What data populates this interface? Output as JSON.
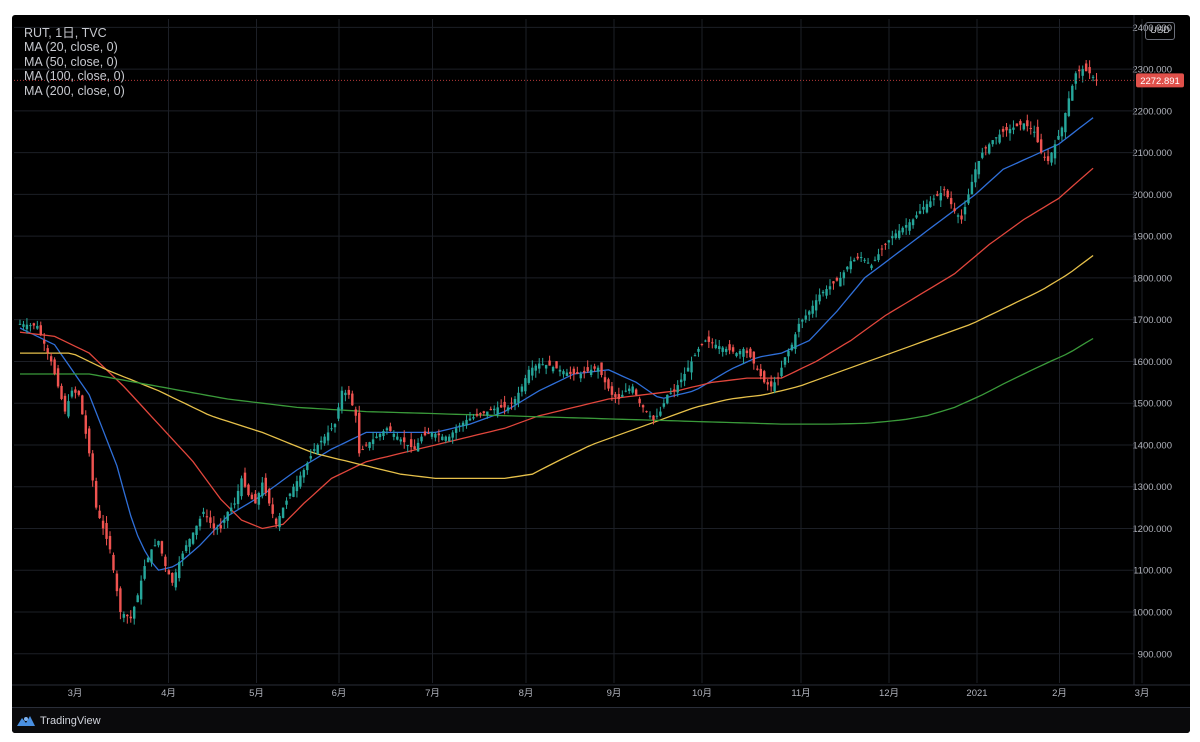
{
  "legend": {
    "symbol": "RUT, 1日, TVC",
    "ma20": "MA (20, close, 0)",
    "ma50": "MA (50, close, 0)",
    "ma100": "MA (100, close, 0)",
    "ma200": "MA (200, close, 0)"
  },
  "currency": "USD",
  "footer": {
    "brand": "TradingView"
  },
  "colors": {
    "background": "#000000",
    "grid": "#1c1f26",
    "up": "#26a69a",
    "down": "#ef5350",
    "ma20": "#2f6fd8",
    "ma50": "#e1463c",
    "ma100": "#e6c04a",
    "ma200": "#3a9a3a",
    "price_line": "#b83a3a",
    "price_label_bg": "#e0504a"
  },
  "chart_data": {
    "type": "candlestick",
    "title": "RUT, 1日, TVC",
    "ylim": [
      830,
      2420
    ],
    "y_ticks": [
      900,
      1000,
      1100,
      1200,
      1300,
      1400,
      1500,
      1600,
      1700,
      1800,
      1900,
      2000,
      2100,
      2200,
      2300,
      2400
    ],
    "y_tick_labels": [
      "900.000",
      "1000.000",
      "1100.000",
      "1200.000",
      "1300.000",
      "1400.000",
      "1500.000",
      "1600.000",
      "1700.000",
      "1800.000",
      "1900.000",
      "2000.000",
      "2100.000",
      "2200.000",
      "2300.000",
      "2400.000"
    ],
    "x_labels": [
      "3月",
      "4月",
      "5月",
      "6月",
      "7月",
      "8月",
      "9月",
      "10月",
      "11月",
      "12月",
      "2021",
      "2月",
      "3月"
    ],
    "last_price": 2272.891,
    "last_price_label": "2272.891",
    "price_path": [
      [
        0,
        1690
      ],
      [
        5,
        1685
      ],
      [
        9,
        1600
      ],
      [
        13,
        1480
      ],
      [
        15,
        1530
      ],
      [
        17,
        1520
      ],
      [
        20,
        1380
      ],
      [
        22,
        1250
      ],
      [
        24,
        1200
      ],
      [
        26,
        1150
      ],
      [
        29,
        1000
      ],
      [
        32,
        985
      ],
      [
        34,
        1040
      ],
      [
        36,
        1110
      ],
      [
        38,
        1150
      ],
      [
        40,
        1170
      ],
      [
        42,
        1110
      ],
      [
        44,
        1070
      ],
      [
        46,
        1120
      ],
      [
        48,
        1160
      ],
      [
        50,
        1190
      ],
      [
        53,
        1240
      ],
      [
        56,
        1200
      ],
      [
        58,
        1200
      ],
      [
        60,
        1240
      ],
      [
        62,
        1260
      ],
      [
        64,
        1320
      ],
      [
        66,
        1280
      ],
      [
        68,
        1260
      ],
      [
        70,
        1310
      ],
      [
        72,
        1260
      ],
      [
        74,
        1210
      ],
      [
        76,
        1250
      ],
      [
        79,
        1300
      ],
      [
        82,
        1340
      ],
      [
        85,
        1390
      ],
      [
        88,
        1420
      ],
      [
        91,
        1450
      ],
      [
        93,
        1530
      ],
      [
        95,
        1520
      ],
      [
        97,
        1470
      ],
      [
        98,
        1380
      ],
      [
        100,
        1400
      ],
      [
        103,
        1420
      ],
      [
        106,
        1440
      ],
      [
        109,
        1420
      ],
      [
        112,
        1400
      ],
      [
        114,
        1390
      ],
      [
        116,
        1420
      ],
      [
        119,
        1430
      ],
      [
        122,
        1420
      ],
      [
        124,
        1420
      ],
      [
        126,
        1440
      ],
      [
        129,
        1460
      ],
      [
        132,
        1470
      ],
      [
        135,
        1480
      ],
      [
        138,
        1490
      ],
      [
        141,
        1490
      ],
      [
        143,
        1510
      ],
      [
        145,
        1540
      ],
      [
        147,
        1580
      ],
      [
        150,
        1595
      ],
      [
        153,
        1590
      ],
      [
        156,
        1580
      ],
      [
        159,
        1570
      ],
      [
        162,
        1570
      ],
      [
        165,
        1580
      ],
      [
        167,
        1585
      ],
      [
        169,
        1550
      ],
      [
        171,
        1520
      ],
      [
        173,
        1510
      ],
      [
        175,
        1530
      ],
      [
        177,
        1540
      ],
      [
        179,
        1500
      ],
      [
        181,
        1480
      ],
      [
        183,
        1460
      ],
      [
        185,
        1480
      ],
      [
        187,
        1520
      ],
      [
        189,
        1530
      ],
      [
        192,
        1570
      ],
      [
        194,
        1600
      ],
      [
        196,
        1630
      ],
      [
        198,
        1650
      ],
      [
        201,
        1640
      ],
      [
        204,
        1630
      ],
      [
        207,
        1620
      ],
      [
        209,
        1630
      ],
      [
        211,
        1610
      ],
      [
        213,
        1580
      ],
      [
        215,
        1550
      ],
      [
        217,
        1540
      ],
      [
        219,
        1560
      ],
      [
        221,
        1610
      ],
      [
        223,
        1640
      ],
      [
        225,
        1690
      ],
      [
        228,
        1720
      ],
      [
        231,
        1760
      ],
      [
        234,
        1780
      ],
      [
        237,
        1800
      ],
      [
        240,
        1840
      ],
      [
        243,
        1850
      ],
      [
        246,
        1830
      ],
      [
        249,
        1870
      ],
      [
        252,
        1900
      ],
      [
        255,
        1920
      ],
      [
        258,
        1940
      ],
      [
        261,
        1970
      ],
      [
        264,
        1990
      ],
      [
        267,
        2010
      ],
      [
        270,
        1960
      ],
      [
        272,
        1940
      ],
      [
        274,
        2000
      ],
      [
        276,
        2060
      ],
      [
        278,
        2100
      ],
      [
        281,
        2130
      ],
      [
        284,
        2150
      ],
      [
        287,
        2160
      ],
      [
        290,
        2170
      ],
      [
        293,
        2150
      ],
      [
        295,
        2100
      ],
      [
        297,
        2080
      ],
      [
        299,
        2120
      ],
      [
        301,
        2160
      ],
      [
        303,
        2230
      ],
      [
        305,
        2290
      ],
      [
        307,
        2300
      ],
      [
        309,
        2290
      ],
      [
        311,
        2273
      ]
    ],
    "series": [
      {
        "name": "MA (20, close, 0)",
        "color_key": "ma20",
        "points": [
          [
            0,
            1680
          ],
          [
            10,
            1640
          ],
          [
            20,
            1520
          ],
          [
            28,
            1350
          ],
          [
            33,
            1200
          ],
          [
            37,
            1130
          ],
          [
            40,
            1100
          ],
          [
            45,
            1110
          ],
          [
            52,
            1160
          ],
          [
            60,
            1230
          ],
          [
            70,
            1280
          ],
          [
            80,
            1340
          ],
          [
            90,
            1390
          ],
          [
            100,
            1430
          ],
          [
            110,
            1430
          ],
          [
            120,
            1430
          ],
          [
            130,
            1450
          ],
          [
            140,
            1480
          ],
          [
            150,
            1530
          ],
          [
            160,
            1570
          ],
          [
            170,
            1580
          ],
          [
            178,
            1550
          ],
          [
            185,
            1510
          ],
          [
            195,
            1530
          ],
          [
            205,
            1580
          ],
          [
            213,
            1610
          ],
          [
            220,
            1620
          ],
          [
            228,
            1650
          ],
          [
            236,
            1720
          ],
          [
            244,
            1800
          ],
          [
            252,
            1850
          ],
          [
            260,
            1900
          ],
          [
            268,
            1950
          ],
          [
            276,
            2000
          ],
          [
            284,
            2060
          ],
          [
            292,
            2090
          ],
          [
            300,
            2120
          ],
          [
            311,
            2190
          ]
        ]
      },
      {
        "name": "MA (50, close, 0)",
        "color_key": "ma50",
        "points": [
          [
            0,
            1670
          ],
          [
            10,
            1660
          ],
          [
            20,
            1620
          ],
          [
            30,
            1540
          ],
          [
            40,
            1450
          ],
          [
            50,
            1360
          ],
          [
            58,
            1270
          ],
          [
            64,
            1220
          ],
          [
            70,
            1200
          ],
          [
            76,
            1210
          ],
          [
            82,
            1260
          ],
          [
            90,
            1320
          ],
          [
            100,
            1360
          ],
          [
            110,
            1380
          ],
          [
            120,
            1400
          ],
          [
            130,
            1420
          ],
          [
            140,
            1440
          ],
          [
            150,
            1470
          ],
          [
            160,
            1490
          ],
          [
            170,
            1510
          ],
          [
            180,
            1520
          ],
          [
            190,
            1530
          ],
          [
            200,
            1550
          ],
          [
            210,
            1560
          ],
          [
            220,
            1560
          ],
          [
            230,
            1600
          ],
          [
            240,
            1650
          ],
          [
            250,
            1710
          ],
          [
            260,
            1760
          ],
          [
            270,
            1810
          ],
          [
            280,
            1880
          ],
          [
            290,
            1940
          ],
          [
            300,
            1990
          ],
          [
            311,
            2070
          ]
        ]
      },
      {
        "name": "MA (100, close, 0)",
        "color_key": "ma100",
        "points": [
          [
            0,
            1620
          ],
          [
            15,
            1620
          ],
          [
            25,
            1580
          ],
          [
            40,
            1530
          ],
          [
            55,
            1470
          ],
          [
            70,
            1430
          ],
          [
            85,
            1380
          ],
          [
            100,
            1350
          ],
          [
            110,
            1330
          ],
          [
            120,
            1320
          ],
          [
            130,
            1320
          ],
          [
            140,
            1320
          ],
          [
            148,
            1330
          ],
          [
            155,
            1360
          ],
          [
            165,
            1400
          ],
          [
            175,
            1430
          ],
          [
            185,
            1460
          ],
          [
            195,
            1490
          ],
          [
            205,
            1510
          ],
          [
            215,
            1520
          ],
          [
            225,
            1540
          ],
          [
            235,
            1570
          ],
          [
            245,
            1600
          ],
          [
            255,
            1630
          ],
          [
            265,
            1660
          ],
          [
            275,
            1690
          ],
          [
            285,
            1730
          ],
          [
            295,
            1770
          ],
          [
            303,
            1810
          ],
          [
            311,
            1860
          ]
        ]
      },
      {
        "name": "MA (200, close, 0)",
        "color_key": "ma200",
        "points": [
          [
            0,
            1570
          ],
          [
            20,
            1570
          ],
          [
            40,
            1540
          ],
          [
            60,
            1510
          ],
          [
            80,
            1490
          ],
          [
            100,
            1480
          ],
          [
            120,
            1475
          ],
          [
            140,
            1470
          ],
          [
            160,
            1465
          ],
          [
            180,
            1460
          ],
          [
            200,
            1455
          ],
          [
            220,
            1450
          ],
          [
            235,
            1450
          ],
          [
            245,
            1452
          ],
          [
            255,
            1460
          ],
          [
            262,
            1470
          ],
          [
            270,
            1490
          ],
          [
            278,
            1520
          ],
          [
            285,
            1550
          ],
          [
            295,
            1590
          ],
          [
            303,
            1620
          ],
          [
            311,
            1660
          ]
        ]
      }
    ]
  }
}
